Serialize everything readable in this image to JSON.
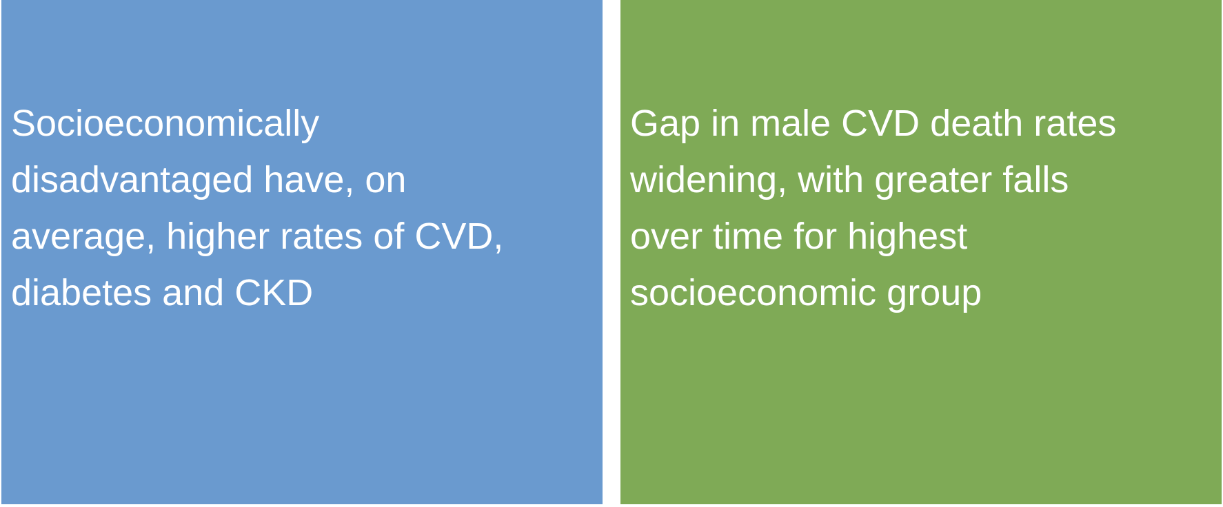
{
  "boxes": [
    {
      "text": "Socioeconomically\ndisadvantaged have, on\naverage, higher rates of CVD,\ndiabetes and CKD",
      "color": "#6a9acf"
    },
    {
      "text": "Gap in male CVD death rates\nwidening, with greater falls\nover time for highest\nsocioeconomic group",
      "color": "#7faa56"
    }
  ]
}
